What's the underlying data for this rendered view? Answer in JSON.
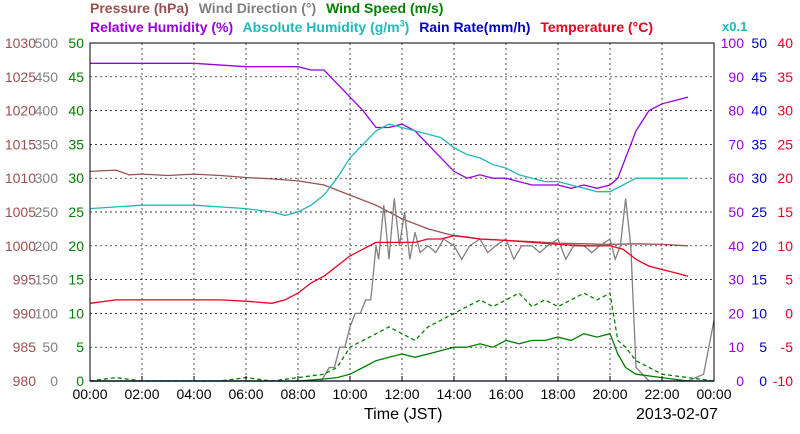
{
  "legend": {
    "pressure": "Pressure (hPa)",
    "wind_direction": "Wind Direction (°)",
    "wind_speed": "Wind Speed (m/s)",
    "relative_humidity": "Relative Humidity (%)",
    "absolute_humidity_prefix": "Absolute Humidity (g/m",
    "absolute_humidity_sup": "3",
    "absolute_humidity_suffix": ")",
    "rain_rate": "Rain Rate(mm/h)",
    "temperature": "Temperature (°C)",
    "rain_multiplier": "x0.1"
  },
  "xlabel": "Time (JST)",
  "date": "2013-02-07",
  "colors": {
    "pressure": "#9a5050",
    "wind_direction": "#808080",
    "wind_speed": "#008000",
    "relative_humidity": "#9900dd",
    "absolute_humidity": "#20b8b8",
    "rain_rate": "#0000cc",
    "temperature": "#ee0022"
  },
  "chart_data": {
    "type": "line",
    "x_ticks": [
      "00:00",
      "02:00",
      "04:00",
      "06:00",
      "08:00",
      "10:00",
      "12:00",
      "14:00",
      "16:00",
      "18:00",
      "20:00",
      "22:00",
      "00:00"
    ],
    "axes": {
      "pressure": {
        "ticks": [
          "980",
          "985",
          "990",
          "995",
          "1000",
          "1005",
          "1010",
          "1015",
          "1020",
          "1025",
          "1030"
        ],
        "range": [
          980,
          1030
        ]
      },
      "wind_direction": {
        "ticks": [
          "0",
          "50",
          "100",
          "150",
          "200",
          "250",
          "300",
          "350",
          "400",
          "450",
          "500"
        ],
        "range": [
          0,
          500
        ]
      },
      "wind_speed": {
        "ticks": [
          "0",
          "5",
          "10",
          "15",
          "20",
          "25",
          "30",
          "35",
          "40",
          "45",
          "50"
        ],
        "range": [
          0,
          50
        ]
      },
      "humidity": {
        "ticks": [
          "0",
          "10",
          "20",
          "30",
          "40",
          "50",
          "60",
          "70",
          "80",
          "90",
          "100"
        ],
        "range": [
          0,
          100
        ]
      },
      "rain_rate": {
        "ticks": [
          "0",
          "5",
          "10",
          "15",
          "20",
          "25",
          "30",
          "35",
          "40",
          "45",
          "50"
        ],
        "range": [
          0,
          50
        ]
      },
      "temperature": {
        "ticks": [
          "-10",
          "-5",
          "0",
          "5",
          "10",
          "15",
          "20",
          "25",
          "30",
          "35",
          "40"
        ],
        "range": [
          -10,
          40
        ]
      }
    },
    "series": [
      {
        "name": "Pressure (hPa)",
        "key": "pressure",
        "axis": "pressure",
        "x": [
          0,
          1,
          1.5,
          2,
          3,
          4,
          5,
          6,
          7,
          8,
          9,
          10,
          11,
          12,
          13,
          14,
          15,
          16,
          17,
          18,
          19,
          20,
          21,
          22,
          23
        ],
        "y": [
          1011,
          1011.2,
          1010.5,
          1010.6,
          1010.4,
          1010.6,
          1010.4,
          1010.1,
          1009.9,
          1009.6,
          1009,
          1007.5,
          1006,
          1004,
          1002.5,
          1001.5,
          1001,
          1000.8,
          1000.6,
          1000.4,
          1000.3,
          1000.2,
          1000.3,
          1000.2,
          1000
        ]
      },
      {
        "name": "Wind Direction (°)",
        "key": "wind_direction",
        "axis": "wind_direction",
        "x": [
          0,
          2,
          4,
          6,
          7,
          8,
          8.9,
          9.2,
          9.4,
          9.6,
          9.8,
          10,
          10.2,
          10.4,
          10.6,
          10.8,
          11,
          11.1,
          11.3,
          11.5,
          11.7,
          11.9,
          12.1,
          12.3,
          12.5,
          12.7,
          13,
          13.3,
          13.6,
          14,
          14.3,
          14.6,
          15,
          15.3,
          15.6,
          16,
          16.3,
          16.6,
          17,
          17.3,
          17.6,
          18,
          18.3,
          18.6,
          19,
          19.3,
          19.6,
          20,
          20.2,
          20.4,
          20.6,
          20.8,
          21,
          21.5,
          22,
          22.5,
          23,
          23.6,
          24
        ],
        "y": [
          0,
          0,
          0,
          0,
          0,
          0,
          0,
          20,
          20,
          50,
          50,
          80,
          100,
          100,
          120,
          120,
          200,
          180,
          260,
          180,
          270,
          200,
          250,
          180,
          220,
          190,
          200,
          190,
          210,
          200,
          180,
          200,
          210,
          190,
          200,
          210,
          180,
          200,
          200,
          190,
          200,
          210,
          180,
          200,
          200,
          190,
          200,
          210,
          180,
          200,
          270,
          200,
          20,
          0,
          0,
          0,
          0,
          10,
          90
        ]
      },
      {
        "name": "Wind Speed (m/s) max",
        "key": "wind_speed",
        "axis": "wind_speed",
        "style": "dashed",
        "x": [
          0,
          1,
          2,
          3,
          4,
          5,
          6,
          7,
          8,
          9,
          9.5,
          10,
          10.5,
          11,
          11.5,
          12,
          12.5,
          13,
          13.5,
          14,
          14.5,
          15,
          15.5,
          16,
          16.5,
          17,
          17.5,
          18,
          18.5,
          19,
          19.5,
          20,
          20.3,
          20.6,
          21,
          22,
          23,
          24
        ],
        "y": [
          0,
          0.5,
          0,
          0,
          0,
          0,
          0.5,
          0,
          0.5,
          1,
          2,
          5,
          6,
          7,
          8,
          7,
          6,
          8,
          9,
          10,
          11,
          12,
          11,
          12,
          13,
          11,
          12,
          11,
          12,
          13,
          12,
          13,
          6,
          5,
          3,
          1,
          0.5,
          0
        ],
        "x_wavy": []
      },
      {
        "name": "Wind Speed (m/s) mean",
        "key": "wind_speed",
        "axis": "wind_speed",
        "style": "solid",
        "x": [
          0,
          1,
          2,
          3,
          4,
          5,
          6,
          7,
          8,
          9,
          9.5,
          10,
          10.5,
          11,
          11.5,
          12,
          12.5,
          13,
          13.5,
          14,
          14.5,
          15,
          15.5,
          16,
          16.5,
          17,
          17.5,
          18,
          18.5,
          19,
          19.5,
          20,
          20.3,
          20.6,
          21,
          22,
          23,
          24
        ],
        "y": [
          0,
          0,
          0,
          0,
          0,
          0,
          0,
          0,
          0,
          0.3,
          0.5,
          1,
          2,
          3,
          3.5,
          4,
          3.5,
          4,
          4.5,
          5,
          5,
          5.5,
          5,
          6,
          5.5,
          6,
          6,
          6.5,
          6,
          7,
          6.5,
          7,
          4,
          2,
          1,
          0.5,
          0,
          0
        ]
      },
      {
        "name": "Relative Humidity (%)",
        "key": "relative_humidity",
        "axis": "humidity",
        "x": [
          0,
          2,
          4,
          6,
          7,
          8,
          8.5,
          9,
          9.5,
          10,
          10.5,
          11,
          11.5,
          12,
          12.5,
          13,
          13.5,
          14,
          14.5,
          15,
          15.5,
          16,
          16.5,
          17,
          17.5,
          18,
          18.5,
          19,
          19.5,
          20,
          20.3,
          20.6,
          21,
          21.5,
          22,
          22.5,
          23
        ],
        "y": [
          94,
          94,
          94,
          93,
          93,
          93,
          92,
          92,
          88,
          84,
          80,
          75,
          75,
          76,
          74,
          70,
          66,
          62,
          60,
          61,
          60,
          60,
          59,
          58,
          58,
          58,
          57,
          58,
          57,
          58,
          60,
          66,
          74,
          80,
          82,
          83,
          84
        ]
      },
      {
        "name": "Absolute Humidity (g/m3)",
        "key": "absolute_humidity",
        "axis": "humidity",
        "x": [
          0,
          2,
          4,
          6,
          7,
          7.5,
          8,
          8.5,
          9,
          9.5,
          10,
          10.5,
          11,
          11.5,
          12,
          12.5,
          13,
          13.5,
          14,
          14.5,
          15,
          15.5,
          16,
          16.5,
          17,
          17.5,
          18,
          18.5,
          19,
          19.5,
          20,
          20.5,
          21,
          21.5,
          22,
          22.5,
          23
        ],
        "y": [
          51,
          52,
          52,
          51,
          50,
          49,
          50,
          52,
          55,
          60,
          66,
          70,
          74,
          76,
          75,
          74,
          73,
          72,
          69,
          67,
          66,
          64,
          63,
          61,
          60,
          59,
          59,
          58,
          57,
          56,
          56,
          58,
          60,
          60,
          60,
          60,
          60
        ]
      },
      {
        "name": "Rain Rate(mm/h)",
        "key": "rain_rate",
        "axis": "rain_rate",
        "x": [
          0,
          24
        ],
        "y": [
          0,
          0
        ]
      },
      {
        "name": "Temperature (°C)",
        "key": "temperature",
        "axis": "temperature",
        "x": [
          0,
          1,
          2,
          3,
          4,
          5,
          6,
          7,
          7.5,
          8,
          8.5,
          9,
          9.5,
          10,
          10.5,
          11,
          11.5,
          12,
          12.5,
          13,
          13.5,
          14,
          14.5,
          15,
          16,
          17,
          18,
          19,
          20,
          20.5,
          21,
          21.5,
          22,
          22.5,
          23
        ],
        "y": [
          1.5,
          2,
          2,
          2,
          2,
          2,
          1.8,
          1.5,
          2,
          3,
          4.5,
          5.5,
          7,
          8.5,
          9.5,
          10.5,
          10.5,
          10.5,
          10.5,
          11,
          11,
          11.5,
          11.3,
          11,
          10.8,
          10.5,
          10.2,
          10,
          10,
          9.5,
          8,
          7,
          6.5,
          6,
          5.5
        ]
      }
    ]
  }
}
